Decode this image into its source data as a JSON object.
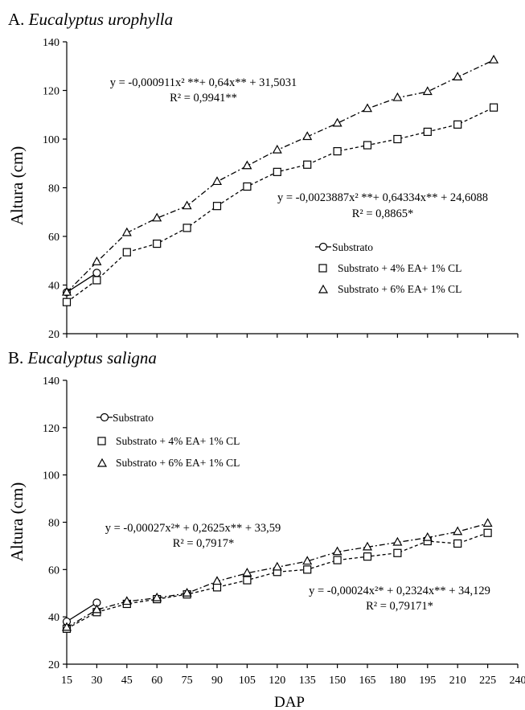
{
  "chart_data": [
    {
      "type": "line",
      "panel_letter": "A.",
      "title": "Eucalyptus urophylla",
      "xlabel": "",
      "ylabel": "Altura (cm)",
      "xlim": [
        15,
        240
      ],
      "ylim": [
        20,
        140
      ],
      "y_ticks": [
        "20",
        "40",
        "60",
        "80",
        "100",
        "120",
        "140"
      ],
      "grid": false,
      "legend_position": "right-center",
      "series": [
        {
          "name": "Substrato",
          "marker": "circle",
          "x": [
            15,
            30
          ],
          "y": [
            37,
            45
          ]
        },
        {
          "name": "Substrato + 4% EA+ 1% CL",
          "marker": "square",
          "x": [
            15,
            30,
            45,
            60,
            75,
            90,
            105,
            120,
            135,
            150,
            165,
            180,
            195,
            210,
            228
          ],
          "y": [
            33,
            42,
            53.5,
            57,
            63.5,
            72.5,
            80.5,
            86.5,
            89.5,
            95,
            97.5,
            100,
            103,
            106,
            113
          ]
        },
        {
          "name": "Substrato + 6% EA+ 1% CL",
          "marker": "triangle",
          "x": [
            15,
            30,
            45,
            60,
            75,
            90,
            105,
            120,
            135,
            150,
            165,
            180,
            195,
            210,
            228
          ],
          "y": [
            37,
            49.5,
            61.5,
            67.5,
            72.5,
            82.5,
            89,
            95.5,
            101,
            106.5,
            112.5,
            117,
            119.5,
            125.5,
            132.5
          ]
        }
      ],
      "annotations": [
        {
          "text": "y = -0,000911x² **+ 0,64x** + 31,5031"
        },
        {
          "text": "R² = 0,9941**"
        },
        {
          "text": "y = -0,0023887x² **+ 0,64334x** + 24,6088"
        },
        {
          "text": "R² = 0,8865*"
        }
      ]
    },
    {
      "type": "line",
      "panel_letter": "B.",
      "title": "Eucalyptus saligna",
      "xlabel": "DAP",
      "ylabel": "Altura (cm)",
      "xlim": [
        15,
        240
      ],
      "ylim": [
        20,
        140
      ],
      "x_ticks": [
        "15",
        "30",
        "45",
        "60",
        "75",
        "90",
        "105",
        "120",
        "135",
        "150",
        "165",
        "180",
        "195",
        "210",
        "225",
        "240"
      ],
      "y_ticks": [
        "20",
        "40",
        "60",
        "80",
        "100",
        "120",
        "140"
      ],
      "grid": false,
      "legend_position": "top-left",
      "series": [
        {
          "name": "Substrato",
          "marker": "circle",
          "x": [
            15,
            30
          ],
          "y": [
            38,
            46
          ]
        },
        {
          "name": "Substrato + 4% EA+ 1% CL",
          "marker": "square",
          "x": [
            15,
            30,
            45,
            60,
            75,
            90,
            105,
            120,
            135,
            150,
            165,
            180,
            195,
            210,
            225
          ],
          "y": [
            35,
            42,
            45.5,
            47.5,
            49.5,
            52.5,
            55.5,
            59,
            60,
            64,
            65.5,
            67,
            72,
            71,
            75.5
          ]
        },
        {
          "name": "Substrato + 6% EA+ 1% CL",
          "marker": "triangle",
          "x": [
            15,
            30,
            45,
            60,
            75,
            90,
            105,
            120,
            135,
            150,
            165,
            180,
            195,
            210,
            225
          ],
          "y": [
            35.5,
            43,
            46.5,
            48,
            50,
            55,
            58.5,
            61,
            63.5,
            67.5,
            69.5,
            71.5,
            73.5,
            76,
            79.5
          ]
        }
      ],
      "annotations": [
        {
          "text": "y = -0,00027x²* + 0,2625x** + 33,59"
        },
        {
          "text": "R² = 0,7917*"
        },
        {
          "text": "y = -0,00024x²* + 0,2324x** + 34,129"
        },
        {
          "text": "R² = 0,79171*"
        }
      ]
    }
  ]
}
